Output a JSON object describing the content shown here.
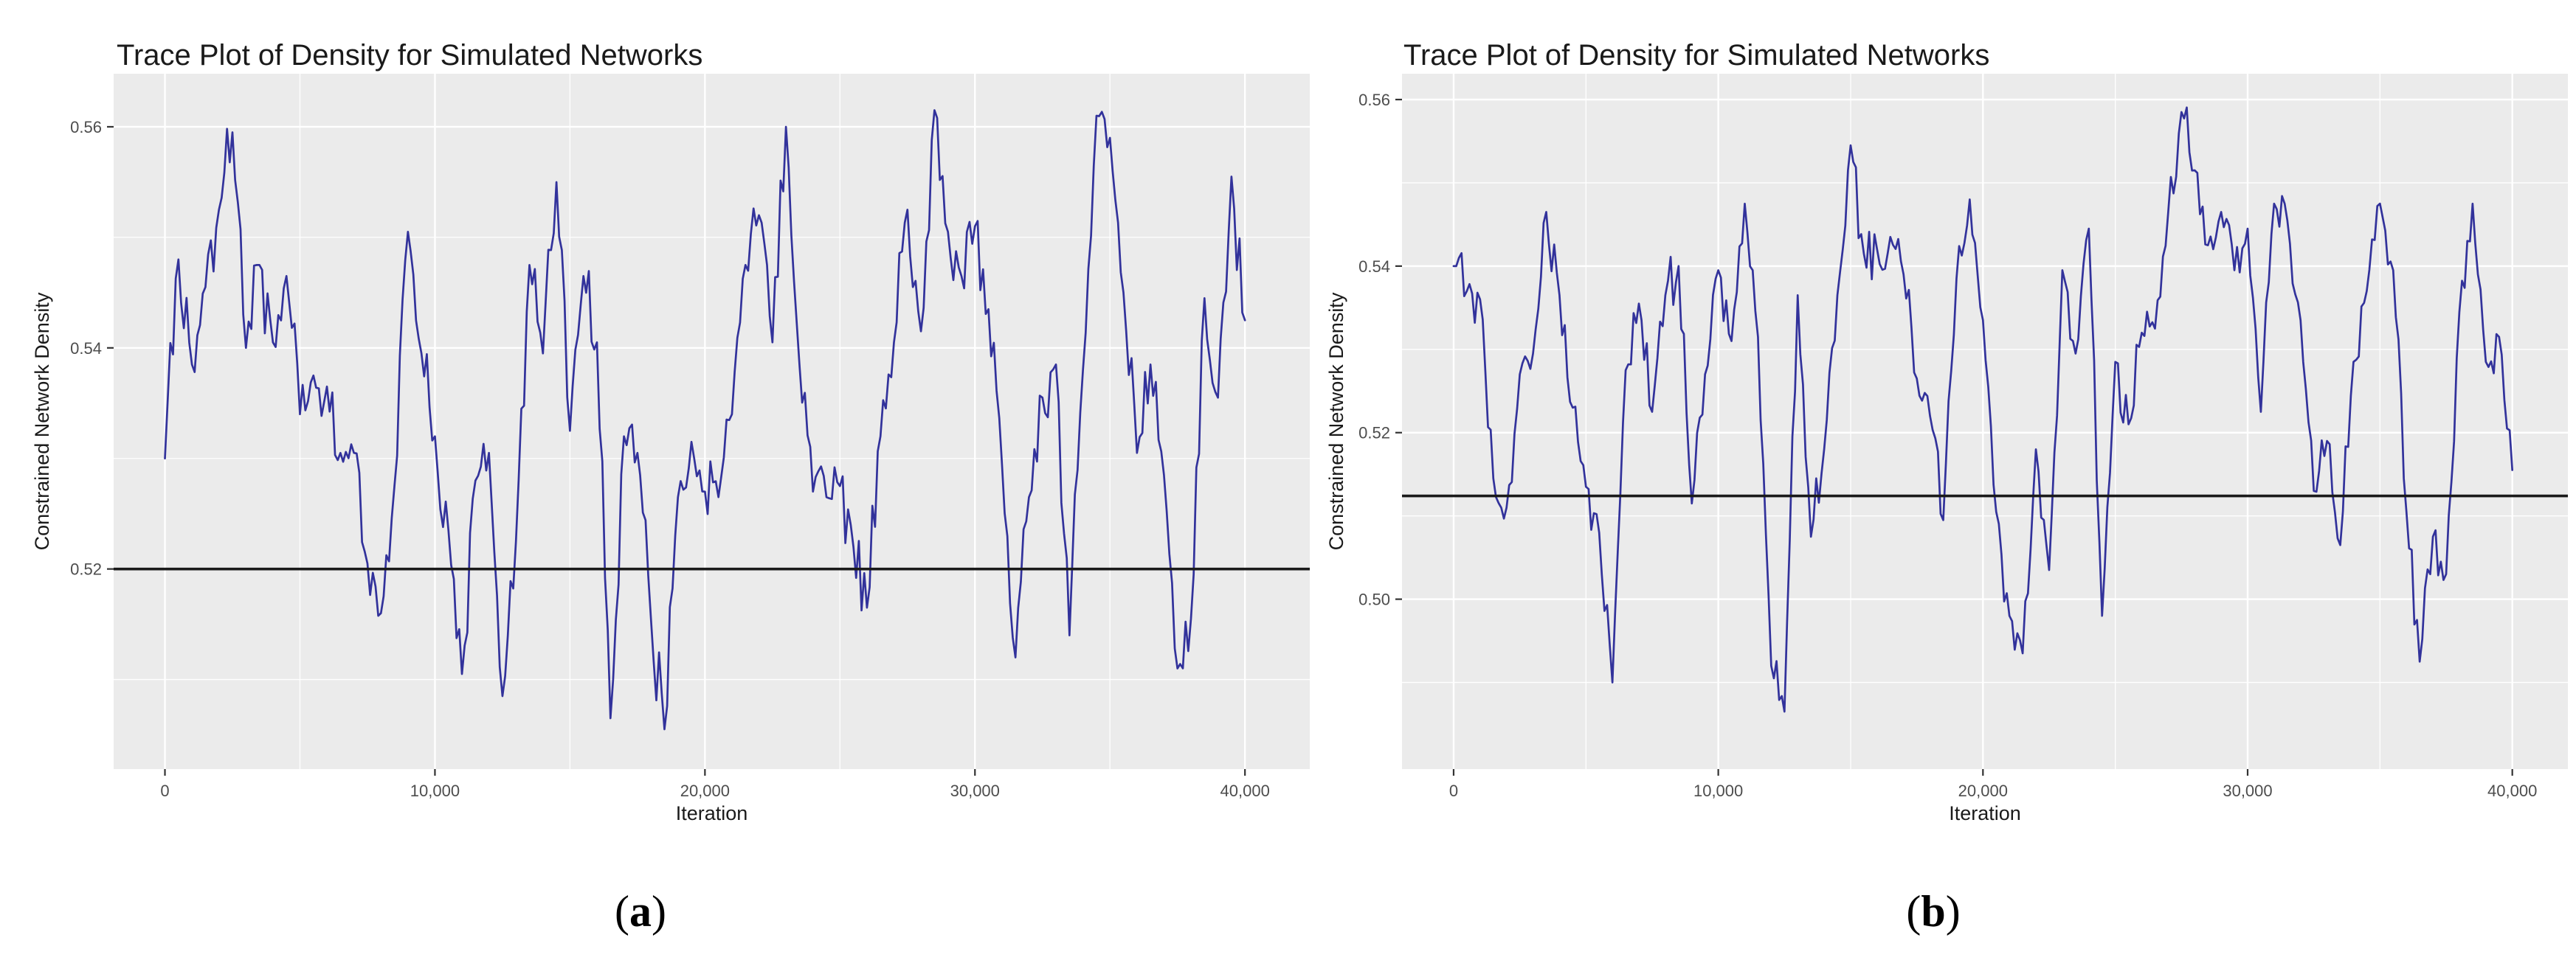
{
  "page": {
    "background_color": "#ffffff",
    "panel_background_color": "#ebebeb",
    "grid_color": "#ffffff",
    "tick_label_color": "#4d4d4d",
    "text_color": "#1a1a1a",
    "trace_color": "#32329b",
    "reference_line_color": "#1a1a1a"
  },
  "chart_data": [
    {
      "id": "a",
      "type": "line",
      "title": "Trace Plot of Density for Simulated Networks",
      "xlabel": "Iteration",
      "ylabel": "Constrained Network Density",
      "x_tick_values": [
        0,
        10000,
        20000,
        30000,
        40000
      ],
      "x_tick_labels": [
        "0",
        "10,000",
        "20,000",
        "30,000",
        "40,000"
      ],
      "y_tick_values": [
        0.52,
        0.54,
        0.56
      ],
      "y_tick_labels": [
        "0.52",
        "0.54",
        "0.56"
      ],
      "xlim": [
        -1900,
        42400
      ],
      "ylim": [
        0.5019,
        0.5648
      ],
      "reference_line_y": 0.52,
      "line_color": "#32329b",
      "grid": true,
      "legend": "none",
      "caption_open": "(",
      "caption_letter": "a",
      "caption_close": ")",
      "series_step": 500,
      "sub_steps": 5,
      "noise_amplitude": 0.0036,
      "noise_seed": 20241,
      "anchors": [
        0.53,
        0.548,
        0.5385,
        0.5455,
        0.5525,
        0.5595,
        0.54,
        0.5475,
        0.5405,
        0.5465,
        0.534,
        0.5375,
        0.5365,
        0.5305,
        0.5305,
        0.5205,
        0.516,
        0.5275,
        0.5505,
        0.5395,
        0.532,
        0.5235,
        0.5105,
        0.528,
        0.5305,
        0.5085,
        0.5225,
        0.5475,
        0.5395,
        0.555,
        0.5325,
        0.5465,
        0.5405,
        0.5065,
        0.532,
        0.5305,
        0.5155,
        0.5055,
        0.5265,
        0.5315,
        0.527,
        0.5265,
        0.534,
        0.5475,
        0.552,
        0.5405,
        0.56,
        0.5385,
        0.527,
        0.5265,
        0.5275,
        0.522,
        0.5165,
        0.532,
        0.5405,
        0.5525,
        0.5415,
        0.5615,
        0.5505,
        0.5465,
        0.551,
        0.5435,
        0.5295,
        0.512,
        0.5265,
        0.5355,
        0.5385,
        0.514,
        0.538,
        0.561,
        0.559,
        0.545,
        0.5305,
        0.5385,
        0.5285,
        0.511,
        0.5155,
        0.5445,
        0.5355,
        0.5555,
        0.5425
      ]
    },
    {
      "id": "b",
      "type": "line",
      "title": "Trace Plot of Density for Simulated Networks",
      "xlabel": "Iteration",
      "ylabel": "Constrained Network Density",
      "x_tick_values": [
        0,
        10000,
        20000,
        30000,
        40000
      ],
      "x_tick_labels": [
        "0",
        "10,000",
        "20,000",
        "30,000",
        "40,000"
      ],
      "y_tick_values": [
        0.5,
        0.52,
        0.54,
        0.56
      ],
      "y_tick_labels": [
        "0.50",
        "0.52",
        "0.54",
        "0.56"
      ],
      "xlim": [
        -1950,
        42100
      ],
      "ylim": [
        0.4796,
        0.5631
      ],
      "reference_line_y": 0.5124,
      "line_color": "#32329b",
      "grid": true,
      "legend": "none",
      "caption_open": "(",
      "caption_letter": "b",
      "caption_close": ")",
      "series_step": 500,
      "sub_steps": 5,
      "noise_amplitude": 0.0036,
      "noise_seed": 77013,
      "anchors": [
        0.54,
        0.537,
        0.536,
        0.5145,
        0.511,
        0.527,
        0.5295,
        0.5465,
        0.5365,
        0.523,
        0.5135,
        0.508,
        0.49,
        0.5275,
        0.5355,
        0.5225,
        0.5365,
        0.54,
        0.5115,
        0.527,
        0.5395,
        0.531,
        0.5475,
        0.5315,
        0.492,
        0.4865,
        0.5365,
        0.5075,
        0.518,
        0.5365,
        0.5545,
        0.5415,
        0.542,
        0.5435,
        0.539,
        0.5265,
        0.522,
        0.5095,
        0.5385,
        0.548,
        0.5335,
        0.5105,
        0.498,
        0.4935,
        0.518,
        0.5035,
        0.5395,
        0.5295,
        0.5445,
        0.498,
        0.5285,
        0.521,
        0.532,
        0.5325,
        0.5465,
        0.5585,
        0.5515,
        0.5425,
        0.5465,
        0.5395,
        0.5445,
        0.5225,
        0.5475,
        0.5455,
        0.5335,
        0.513,
        0.519,
        0.5065,
        0.5285,
        0.537,
        0.5475,
        0.5395,
        0.5105,
        0.4925,
        0.5075,
        0.503,
        0.5345,
        0.5475,
        0.5285,
        0.5315,
        0.5155
      ]
    }
  ]
}
